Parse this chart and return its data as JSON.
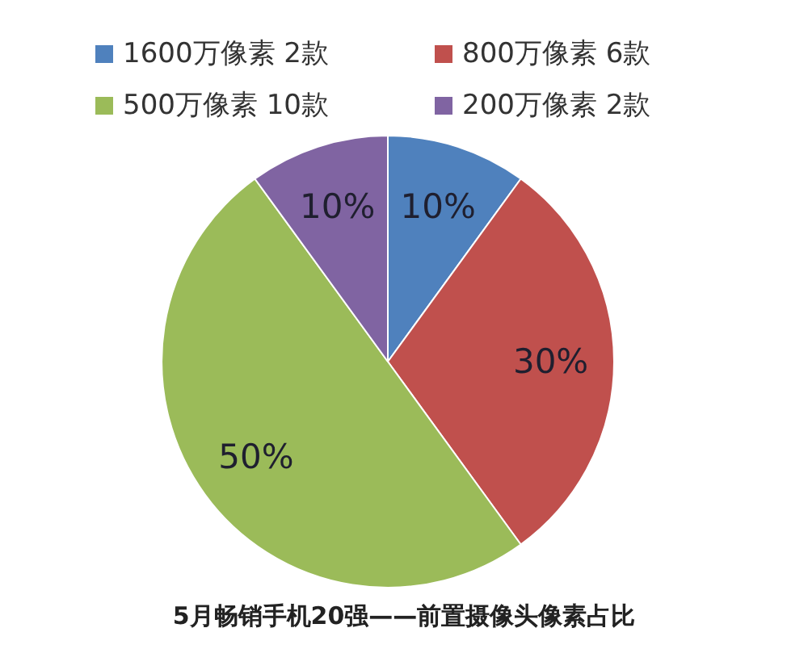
{
  "chart_data": {
    "type": "pie",
    "title": "5月畅销手机20强——前置摄像头像素占比",
    "categories": [
      "1600万像素 2款",
      "800万像素 6款",
      "500万像素 10款",
      "200万像素 2款"
    ],
    "values": [
      10,
      30,
      50,
      10
    ],
    "colors": [
      "#4f81bd",
      "#c0504d",
      "#9bbb59",
      "#8064a2"
    ],
    "value_labels": [
      "10%",
      "30%",
      "50%",
      "10%"
    ],
    "legend": "top"
  }
}
